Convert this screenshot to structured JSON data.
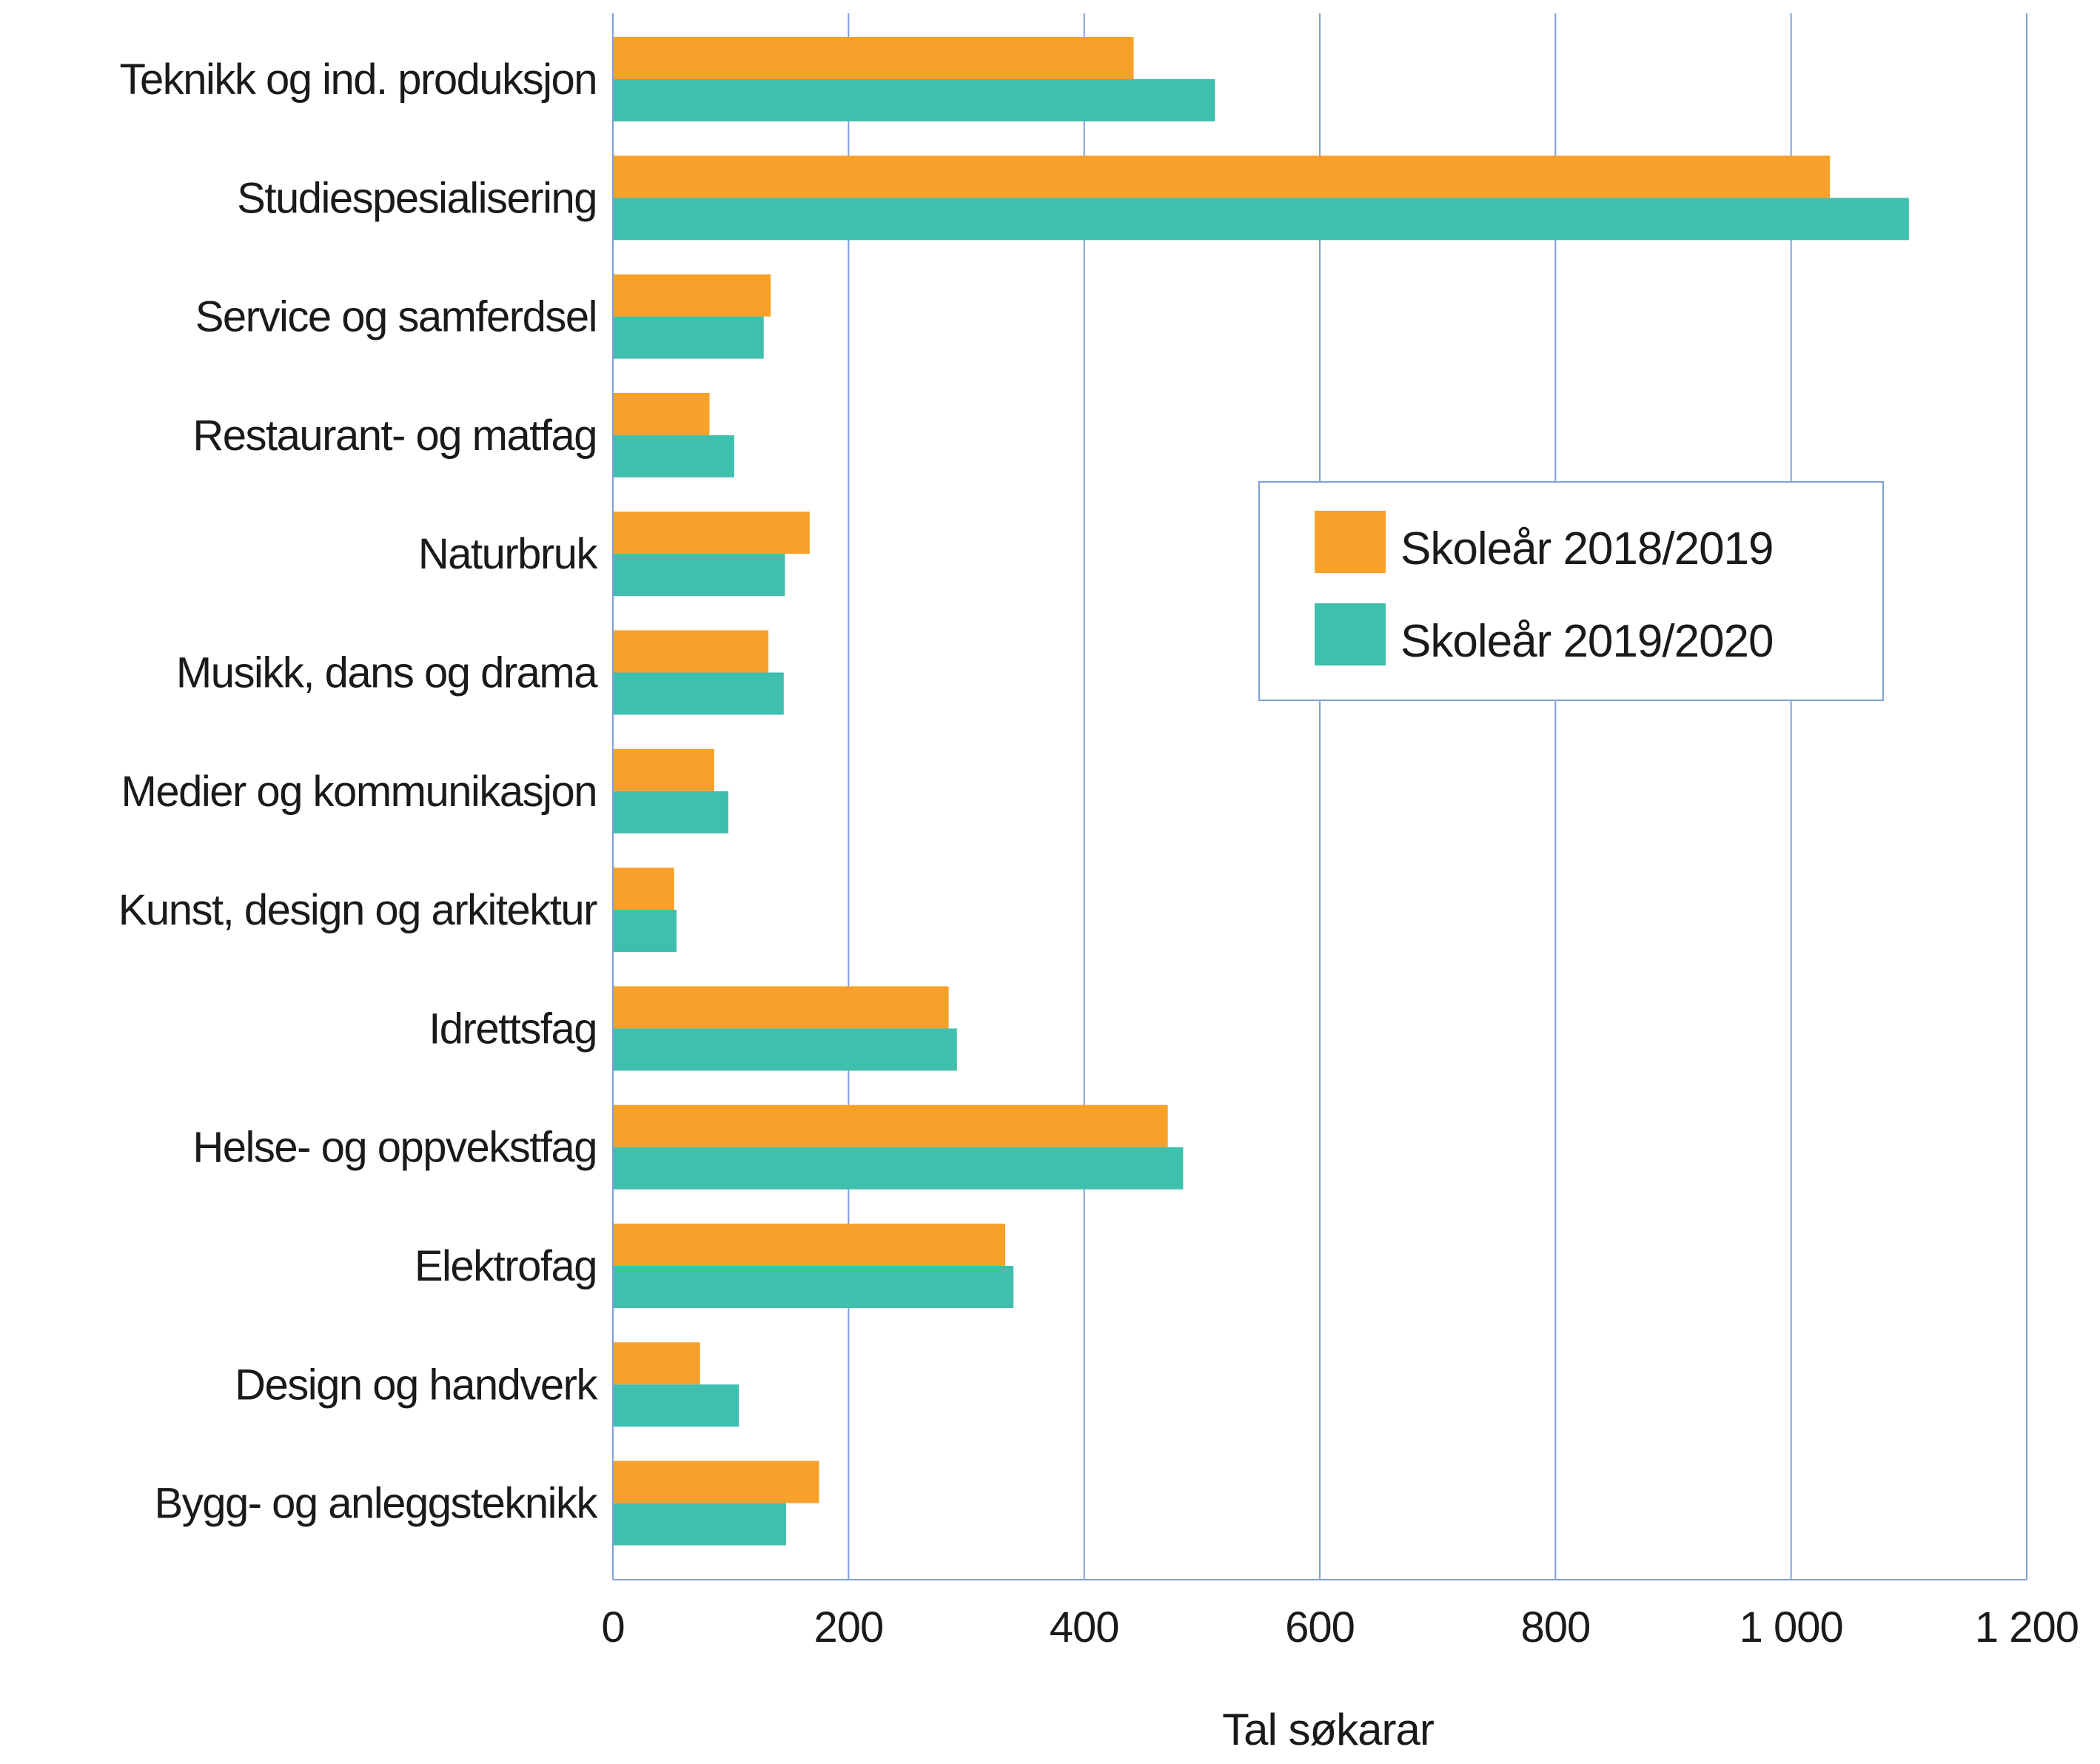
{
  "chart_data": {
    "type": "bar",
    "orientation": "horizontal",
    "categories": [
      "Teknikk og ind. produksjon",
      "Studiespesialisering",
      "Service og samferdsel",
      "Restaurant- og matfag",
      "Naturbruk",
      "Musikk, dans og drama",
      "Medier og kommunikasjon",
      "Kunst, design og arkitektur",
      "Idrettsfag",
      "Helse- og oppvekstfag",
      "Elektrofag",
      "Design og handverk",
      "Bygg- og anleggsteknikk"
    ],
    "series": [
      {
        "name": "Skoleår 2018/2019",
        "color": "#f7a12a",
        "values": [
          442,
          1033,
          134,
          82,
          167,
          132,
          86,
          52,
          285,
          471,
          333,
          74,
          175
        ]
      },
      {
        "name": "Skoleår 2019/2020",
        "color": "#3fbfad",
        "values": [
          511,
          1100,
          128,
          103,
          146,
          145,
          98,
          54,
          292,
          484,
          340,
          107,
          147
        ]
      }
    ],
    "xlabel": "Tal søkarar",
    "xlim": [
      0,
      1200
    ],
    "xticks": [
      0,
      200,
      400,
      600,
      800,
      1000,
      1200
    ],
    "xtick_labels": [
      "0",
      "200",
      "400",
      "600",
      "800",
      "1 000",
      "1 200"
    ],
    "grid": "vertical",
    "grid_color": "#7f9fd6",
    "legend_position": "right, upper-middle"
  }
}
